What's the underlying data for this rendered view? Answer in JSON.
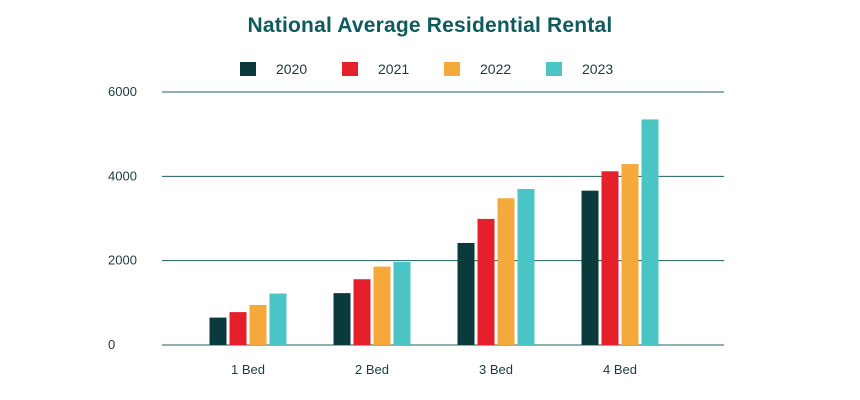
{
  "chart_data": {
    "type": "bar",
    "title": "National Average Residential Rental",
    "categories": [
      "1 Bed",
      "2 Bed",
      "3 Bed",
      "4 Bed"
    ],
    "series": [
      {
        "name": "2020",
        "color": "#0b3a3c",
        "values": [
          650,
          1230,
          2420,
          3660
        ]
      },
      {
        "name": "2021",
        "color": "#e5202b",
        "values": [
          780,
          1560,
          2990,
          4120
        ]
      },
      {
        "name": "2022",
        "color": "#f5a93a",
        "values": [
          950,
          1860,
          3480,
          4290
        ]
      },
      {
        "name": "2023",
        "color": "#4bc4c6",
        "values": [
          1220,
          1970,
          3700,
          5350
        ]
      }
    ],
    "yticks": [
      "0",
      "2000",
      "4000",
      "6000"
    ],
    "ylim": [
      0,
      6000
    ],
    "grid": true,
    "legend": "top-center"
  }
}
